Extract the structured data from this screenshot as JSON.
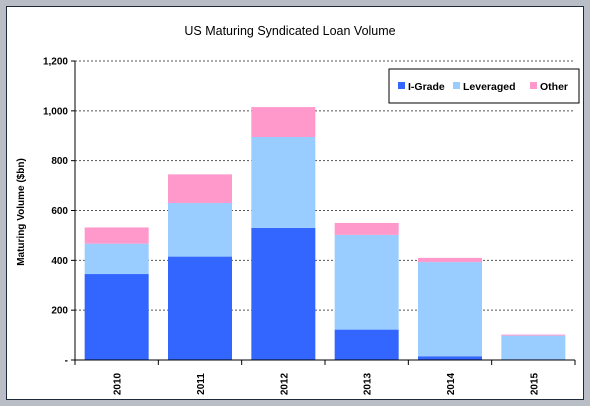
{
  "chart_data": {
    "type": "bar",
    "stacked": true,
    "title": "US Maturing Syndicated Loan Volume",
    "xlabel": "",
    "ylabel": "Maturing Volume ($bn)",
    "ylim": [
      0,
      1200
    ],
    "yticks": [
      0,
      200,
      400,
      600,
      800,
      1000,
      1200
    ],
    "ytick_labels": [
      "-",
      "200",
      "400",
      "600",
      "800",
      "1,000",
      "1,200"
    ],
    "grid": true,
    "legend_position": "top-right",
    "categories": [
      "2010",
      "2011",
      "2012",
      "2013",
      "2014",
      "2015"
    ],
    "series": [
      {
        "name": "I-Grade",
        "color": "#3366ff",
        "values": [
          345,
          415,
          530,
          122,
          15,
          3
        ]
      },
      {
        "name": "Leveraged",
        "color": "#99ccff",
        "values": [
          122,
          215,
          365,
          380,
          378,
          95
        ]
      },
      {
        "name": "Other",
        "color": "#ff99cc",
        "values": [
          65,
          115,
          120,
          48,
          17,
          4
        ]
      }
    ]
  }
}
